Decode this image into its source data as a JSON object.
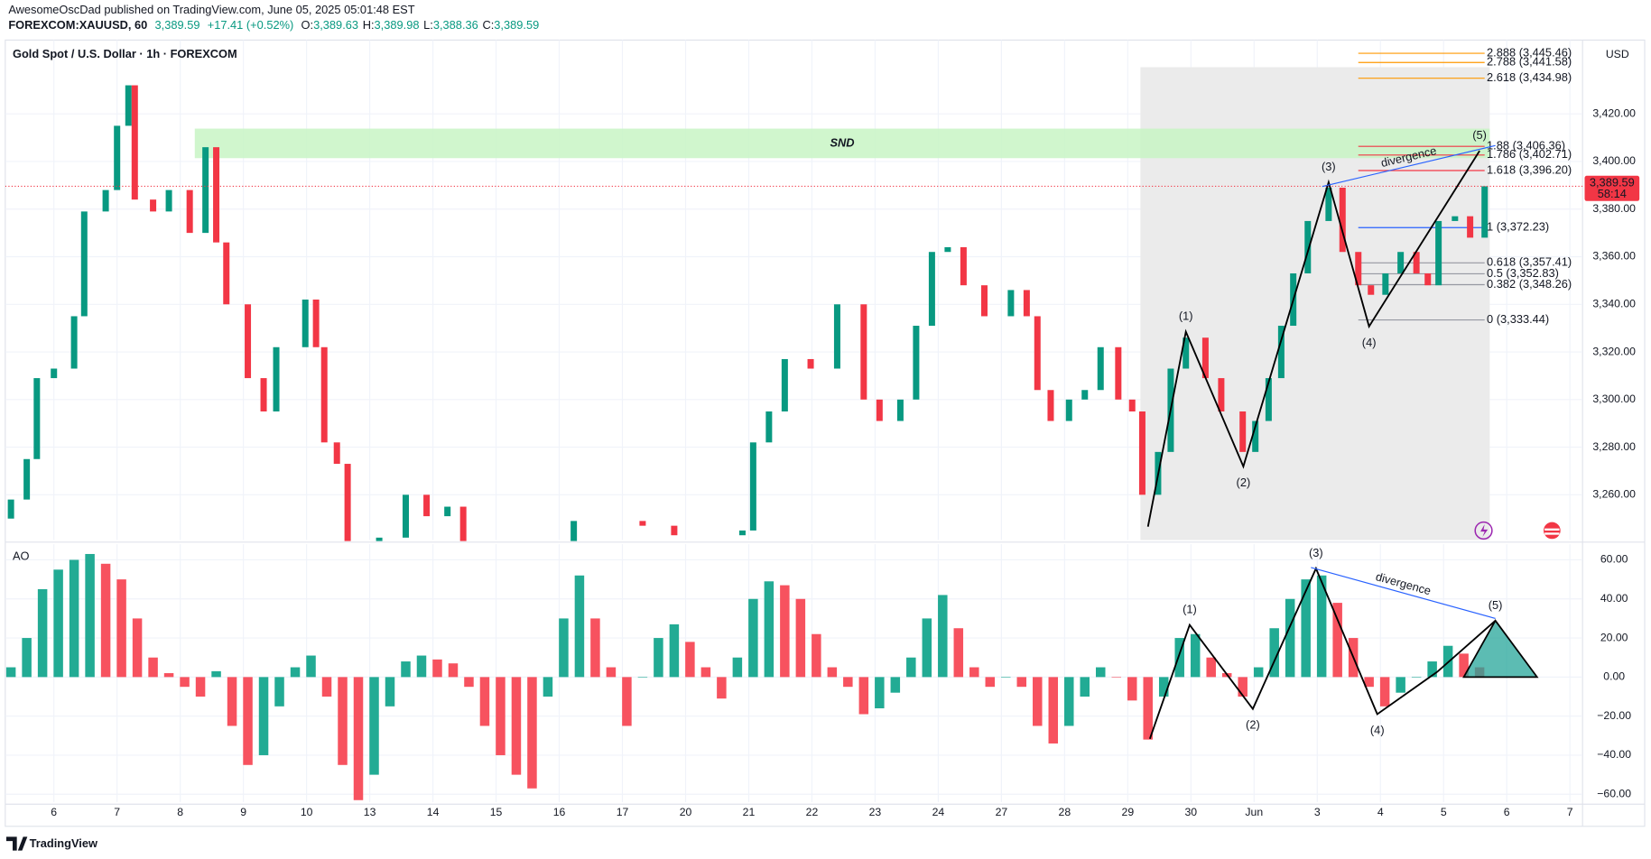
{
  "header": {
    "publisher": "AwesomeOscDad published on TradingView.com, June 05, 2025 05:01:48 EST",
    "symbol": "FOREXCOM:XAUUSD, 60",
    "last": "3,389.59",
    "change": "+17.41 (+0.52%)",
    "ohlc": [
      {
        "label": "O:",
        "value": "3,389.63"
      },
      {
        "label": "H:",
        "value": "3,389.98"
      },
      {
        "label": "L:",
        "value": "3,388.36"
      },
      {
        "label": "C:",
        "value": "3,389.59"
      }
    ]
  },
  "chart_data": [
    {
      "type": "candlestick",
      "title": "Gold Spot / U.S. Dollar · 1h · FOREXCOM",
      "currency": "USD",
      "x": [
        -0.68,
        -0.43,
        -0.27,
        0,
        0.32,
        0.48,
        0.82,
        1.0,
        1.18,
        1.28,
        1.57,
        1.82,
        2.15,
        2.4,
        2.57,
        2.73,
        3.07,
        3.32,
        3.52,
        3.98,
        4.15,
        4.28,
        4.48,
        4.65,
        5.15,
        5.57,
        5.9,
        6.23,
        6.48,
        8.23,
        9.32,
        9.82,
        10.9,
        11.07,
        11.32,
        11.57,
        11.98,
        12.4,
        12.82,
        13.07,
        13.4,
        13.65,
        13.9,
        14.15,
        14.4,
        14.73,
        15.15,
        15.4,
        15.57,
        15.78,
        16.07,
        16.32,
        16.57,
        16.85,
        17.07,
        17.23,
        17.48,
        17.68,
        17.92,
        18.23,
        18.48,
        18.82,
        19.02,
        19.23,
        19.43,
        19.62,
        19.85,
        20.18,
        20.4,
        20.65,
        20.85,
        21.08,
        21.32,
        21.57,
        21.75,
        21.92,
        22.18,
        22.42,
        22.65
      ],
      "open": [
        3250,
        3258,
        3275,
        3309,
        3313,
        3335,
        3379,
        3388,
        3415,
        3432,
        3384,
        3379,
        3388,
        3370,
        3406,
        3366,
        3340,
        3309,
        3295,
        3322,
        3342,
        3322,
        3282,
        3273,
        3238,
        3242,
        3260,
        3251,
        3255,
        3238,
        3249,
        3247,
        3243,
        3245,
        3282,
        3295,
        3317,
        3313,
        3340,
        3300,
        3291,
        3300,
        3331,
        3362,
        3364,
        3348,
        3335,
        3346,
        3335,
        3304,
        3291,
        3300,
        3304,
        3322,
        3300,
        3295,
        3260,
        3278,
        3313,
        3326,
        3309,
        3295,
        3278,
        3291,
        3309,
        3331,
        3353,
        3375,
        3389,
        3362,
        3348,
        3344,
        3353,
        3362,
        3353,
        3348,
        3375,
        3377,
        3368
      ],
      "close": [
        3258,
        3275,
        3309,
        3313,
        3335,
        3379,
        3388,
        3415,
        3432,
        3384,
        3379,
        3388,
        3370,
        3406,
        3366,
        3340,
        3309,
        3295,
        3322,
        3342,
        3322,
        3282,
        3273,
        3238,
        3242,
        3260,
        3251,
        3255,
        3238,
        3249,
        3247,
        3243,
        3245,
        3282,
        3295,
        3317,
        3313,
        3340,
        3300,
        3291,
        3300,
        3331,
        3362,
        3364,
        3348,
        3335,
        3346,
        3335,
        3304,
        3291,
        3300,
        3304,
        3322,
        3300,
        3295,
        3260,
        3278,
        3313,
        3326,
        3309,
        3295,
        3278,
        3291,
        3309,
        3331,
        3353,
        3375,
        3389,
        3362,
        3348,
        3344,
        3353,
        3362,
        3353,
        3348,
        3375,
        3377,
        3368,
        3389.59
      ],
      "up_color": "#089981",
      "down_color": "#f23645",
      "xlim": [
        -0.77,
        24.2
      ],
      "ylim": [
        3241,
        3451
      ],
      "yticks": [
        {
          "value": 3260,
          "label": "3,260.00"
        },
        {
          "value": 3280,
          "label": "3,280.00"
        },
        {
          "value": 3300,
          "label": "3,300.00"
        },
        {
          "value": 3320,
          "label": "3,320.00"
        },
        {
          "value": 3340,
          "label": "3,340.00"
        },
        {
          "value": 3360,
          "label": "3,360.00"
        },
        {
          "value": 3380,
          "label": "3,380.00"
        },
        {
          "value": 3400,
          "label": "3,400.00"
        },
        {
          "value": 3420,
          "label": "3,420.00"
        }
      ],
      "last_price": 3389.59,
      "last_price_label": "3,389.59",
      "countdown": "58:14",
      "shade": {
        "x": [
          17.2,
          22.73
        ],
        "top": 3439.6,
        "color": "#ebebeb"
      },
      "zone": {
        "label": "SND",
        "x": [
          2.23,
          22.73
        ],
        "y": [
          3401.4,
          3413.8
        ],
        "color": "#c8f5c4"
      },
      "fib_levels": [
        {
          "label": "2.888 (3,445.46)",
          "price": 3445.46,
          "color": "#ff9800"
        },
        {
          "label": "2.788 (3,441.58)",
          "price": 3441.58,
          "color": "#ff9800"
        },
        {
          "label": "2.618 (3,434.98)",
          "price": 3434.98,
          "color": "#ff9800"
        },
        {
          "label": "1.88 (3,406.36)",
          "price": 3406.36,
          "color": "#f23645"
        },
        {
          "label": "1.786 (3,402.71)",
          "price": 3402.71,
          "color": "#f23645"
        },
        {
          "label": "1.618 (3,396.20)",
          "price": 3396.2,
          "color": "#f23645"
        },
        {
          "label": "1 (3,372.23)",
          "price": 3372.23,
          "color": "#2962ff"
        },
        {
          "label": "0.618 (3,357.41)",
          "price": 3357.41,
          "color": "#9598a1"
        },
        {
          "label": "0.5 (3,352.83)",
          "price": 3352.83,
          "color": "#9598a1"
        },
        {
          "label": "0.382 (3,348.26)",
          "price": 3348.26,
          "color": "#9598a1"
        },
        {
          "label": "0 (3,333.44)",
          "price": 3333.44,
          "color": "#9598a1"
        }
      ],
      "waves": {
        "x": [
          17.32,
          17.92,
          18.83,
          20.18,
          20.82,
          22.57
        ],
        "y": [
          3246.6,
          3328.5,
          3271.9,
          3391.3,
          3330.7,
          3404.5
        ],
        "labels": [
          null,
          "(1)",
          "(2)",
          "(3)",
          "(4)",
          "(5)"
        ]
      },
      "divergence": {
        "label": "divergence",
        "x": [
          20.08,
          22.82
        ],
        "y": [
          3389.5,
          3406.7
        ],
        "color": "#2962ff"
      }
    },
    {
      "type": "oscillator",
      "title": "AO",
      "x": [
        -0.68,
        -0.43,
        -0.18,
        0.07,
        0.32,
        0.57,
        0.82,
        1.07,
        1.32,
        1.57,
        1.82,
        2.07,
        2.32,
        2.57,
        2.82,
        3.07,
        3.32,
        3.57,
        3.82,
        4.07,
        4.32,
        4.57,
        4.82,
        5.07,
        5.32,
        5.57,
        5.82,
        6.07,
        6.32,
        6.57,
        6.82,
        7.07,
        7.32,
        7.57,
        7.82,
        8.07,
        8.32,
        8.57,
        8.82,
        9.07,
        9.32,
        9.57,
        9.82,
        10.07,
        10.32,
        10.57,
        10.82,
        11.07,
        11.32,
        11.57,
        11.82,
        12.07,
        12.32,
        12.57,
        12.82,
        13.07,
        13.32,
        13.57,
        13.82,
        14.07,
        14.32,
        14.57,
        14.82,
        15.07,
        15.32,
        15.57,
        15.82,
        16.07,
        16.32,
        16.57,
        16.82,
        17.07,
        17.32,
        17.57,
        17.82,
        18.07,
        18.32,
        18.57,
        18.82,
        19.07,
        19.32,
        19.57,
        19.82,
        20.07,
        20.32,
        20.57,
        20.82,
        21.07,
        21.32,
        21.57,
        21.82,
        22.07,
        22.32,
        22.57
      ],
      "values": [
        5,
        20,
        45,
        55,
        60,
        63,
        58,
        50,
        30,
        10,
        2,
        -5,
        -10,
        3,
        -25,
        -45,
        -40,
        -15,
        5,
        11,
        -10,
        -45,
        -63,
        -50,
        -15,
        8,
        11,
        9,
        7,
        -5,
        -25,
        -40,
        -50,
        -57,
        -10,
        30,
        52,
        30,
        5,
        -25,
        0,
        20,
        27,
        18,
        5,
        -11,
        10,
        40,
        49,
        47,
        40,
        22,
        5,
        -5,
        -19,
        -16,
        -8,
        10,
        30,
        42,
        25,
        5,
        -5,
        0,
        -5,
        -25,
        -34,
        -25,
        -10,
        5,
        0,
        -12,
        -32,
        -10,
        20,
        22,
        10,
        2,
        -10,
        5,
        25,
        40,
        50,
        52,
        38,
        20,
        -5,
        -15,
        -8,
        0,
        8,
        16,
        12,
        5
      ],
      "up_color": "#22ab94",
      "down_color": "#f7525f",
      "xlim": [
        -0.77,
        24.2
      ],
      "ylim": [
        -64,
        68
      ],
      "yticks": [
        {
          "value": 60,
          "label": "60.00"
        },
        {
          "value": 40,
          "label": "40.00"
        },
        {
          "value": 20,
          "label": "20.00"
        },
        {
          "value": 0,
          "label": "0.00"
        },
        {
          "value": -20,
          "label": "−20.00"
        },
        {
          "value": -40,
          "label": "−40.00"
        },
        {
          "value": -60,
          "label": "−60.00"
        }
      ],
      "xticks": [
        {
          "value": 0,
          "label": "6"
        },
        {
          "value": 1,
          "label": "7"
        },
        {
          "value": 2,
          "label": "8"
        },
        {
          "value": 3,
          "label": "9"
        },
        {
          "value": 4,
          "label": "10"
        },
        {
          "value": 5,
          "label": "13"
        },
        {
          "value": 6,
          "label": "14"
        },
        {
          "value": 7,
          "label": "15"
        },
        {
          "value": 8,
          "label": "16"
        },
        {
          "value": 9,
          "label": "17"
        },
        {
          "value": 10,
          "label": "20"
        },
        {
          "value": 11,
          "label": "21"
        },
        {
          "value": 12,
          "label": "22"
        },
        {
          "value": 13,
          "label": "23"
        },
        {
          "value": 14,
          "label": "24"
        },
        {
          "value": 15,
          "label": "27"
        },
        {
          "value": 16,
          "label": "28"
        },
        {
          "value": 17,
          "label": "29"
        },
        {
          "value": 18,
          "label": "30"
        },
        {
          "value": 19,
          "label": "Jun"
        },
        {
          "value": 20,
          "label": "3"
        },
        {
          "value": 21,
          "label": "4"
        },
        {
          "value": 22,
          "label": "5"
        },
        {
          "value": 23,
          "label": "6"
        },
        {
          "value": 24,
          "label": "7"
        }
      ],
      "waves": {
        "x": [
          17.35,
          17.98,
          18.98,
          19.98,
          20.95,
          21.9,
          22.82
        ],
        "y": [
          -31.6,
          26.7,
          -16.3,
          55.6,
          -19,
          2.7,
          28.9
        ],
        "labels": [
          null,
          "(1)",
          "(2)",
          "(3)",
          "(4)",
          null,
          "(5)"
        ]
      },
      "divergence": {
        "label": "divergence",
        "x": [
          19.9,
          22.82
        ],
        "y": [
          56.1,
          30
        ],
        "color": "#2962ff"
      },
      "triangle": {
        "x": [
          22.32,
          22.82,
          23.48
        ],
        "y": [
          0,
          28.9,
          0
        ],
        "color": "#26a69a"
      }
    }
  ],
  "footer": {
    "brand": "TradingView"
  }
}
